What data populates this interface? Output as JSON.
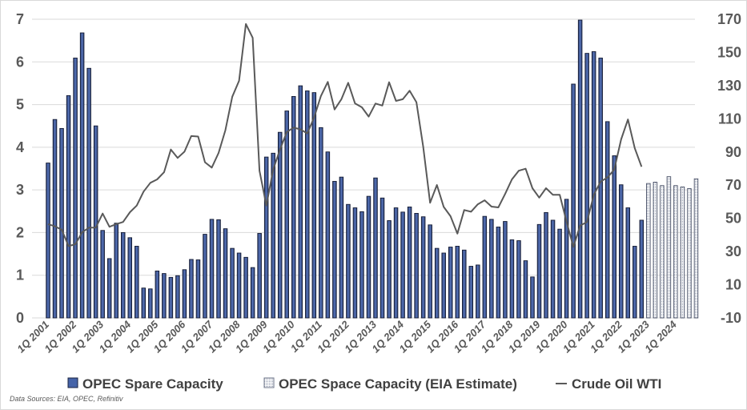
{
  "chart_data": {
    "type": "bar+line",
    "title": "",
    "source_note": "Data Sources: EIA, OPEC, Refinitiv",
    "left_axis": {
      "ylim": [
        0,
        7
      ],
      "ticks": [
        "0",
        "1",
        "2",
        "3",
        "4",
        "5",
        "6",
        "7"
      ]
    },
    "right_axis": {
      "ylim": [
        -10,
        170
      ],
      "ticks": [
        "-10",
        "10",
        "30",
        "50",
        "70",
        "90",
        "110",
        "130",
        "150",
        "170"
      ]
    },
    "grid": "horizontal, left-axis ticks",
    "legend_position": "bottom",
    "x_tick_labels": [
      "1Q 2001",
      "1Q 2002",
      "1Q 2003",
      "1Q 2004",
      "1Q 2005",
      "1Q 2006",
      "1Q 2007",
      "1Q 2008",
      "1Q 2009",
      "1Q 2010",
      "1Q 2011",
      "1Q 2012",
      "1Q 2013",
      "1Q 2014",
      "1Q 2015",
      "1Q 2016",
      "1Q 2017",
      "1Q 2018",
      "1Q 2019",
      "1Q 2020",
      "1Q 2021",
      "1Q 2022",
      "1Q 2023",
      "1Q 2024"
    ],
    "quarters_per_year": 4,
    "series": [
      {
        "name": "OPEC Spare Capacity",
        "axis": "left",
        "kind": "bar",
        "color": "#3b5494",
        "values": [
          3.63,
          4.65,
          4.44,
          5.21,
          6.09,
          6.68,
          5.85,
          4.5,
          2.05,
          1.39,
          2.22,
          2.0,
          1.88,
          1.68,
          0.7,
          0.68,
          1.1,
          1.04,
          0.95,
          0.99,
          1.13,
          1.37,
          1.36,
          1.96,
          2.31,
          2.3,
          2.09,
          1.63,
          1.52,
          1.42,
          1.18,
          1.98,
          3.77,
          3.86,
          4.35,
          4.85,
          5.19,
          5.44,
          5.32,
          5.28,
          4.46,
          3.89,
          3.2,
          3.3,
          2.66,
          2.58,
          2.49,
          2.85,
          3.28,
          2.81,
          2.28,
          2.58,
          2.48,
          2.6,
          2.45,
          2.37,
          2.18,
          1.63,
          1.52,
          1.66,
          1.68,
          1.59,
          1.21,
          1.24,
          2.38,
          2.31,
          2.13,
          2.26,
          1.83,
          1.81,
          1.34,
          0.96,
          2.19,
          2.47,
          2.29,
          2.08,
          2.78,
          5.48,
          6.98,
          6.2,
          6.24,
          6.09,
          4.6,
          3.8,
          3.12,
          2.58,
          1.68,
          2.29
        ]
      },
      {
        "name": "OPEC Space Capacity (EIA Estimate)",
        "axis": "left",
        "kind": "bar-pattern",
        "color": "#c8ccd4",
        "start_index": 88,
        "values": [
          3.15,
          3.18,
          3.1,
          3.31,
          3.1,
          3.07,
          3.03,
          3.26
        ]
      },
      {
        "name": "Crude Oil WTI",
        "axis": "right",
        "kind": "line",
        "color": "#595959",
        "values": [
          46.5,
          45.2,
          43.2,
          33.3,
          34.4,
          41.6,
          44.4,
          44.4,
          52.9,
          44.9,
          46.5,
          47.8,
          53.7,
          57.7,
          66.1,
          71.4,
          73.5,
          77.8,
          91.5,
          86.4,
          90.2,
          99.6,
          99.3,
          83.8,
          80.6,
          89.4,
          103.1,
          123.3,
          132.9,
          167.1,
          158.8,
          78.7,
          57.7,
          79.4,
          91.5,
          102,
          104.7,
          103.6,
          101.2,
          110.8,
          123.7,
          132.2,
          115.6,
          121.8,
          131.7,
          119.3,
          116.9,
          111.3,
          119.2,
          118,
          132,
          120.8,
          121.8,
          126.9,
          120,
          93.1,
          59.4,
          70.1,
          56.9,
          51.3,
          40.8,
          55,
          54,
          58.5,
          60.9,
          57.1,
          56.6,
          64.7,
          73.5,
          78.7,
          79.9,
          68.2,
          62.5,
          68.2,
          64.2,
          64.2,
          48,
          32.8,
          45.6,
          47.8,
          64.2,
          72.2,
          74.6,
          79.4,
          97.6,
          109.6,
          92.3,
          81.1
        ]
      }
    ]
  }
}
